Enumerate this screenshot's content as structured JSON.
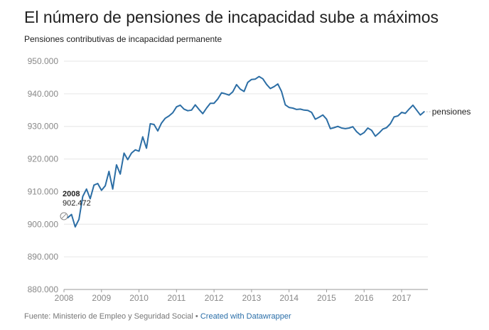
{
  "title": "El número de pensiones de incapacidad sube a máximos",
  "subtitle": "Pensiones contributivas de incapacidad permanente",
  "footer": {
    "source": "Fuente: Ministerio de Empleo y Seguridad Social",
    "separator": "•",
    "credit": "Created with Datawrapper"
  },
  "colors": {
    "line": "#2c6ea5",
    "grid": "#e6e6e6",
    "axis_text": "#888888"
  },
  "chart_data": {
    "type": "line",
    "title": "El número de pensiones de incapacidad sube a máximos",
    "subtitle": "Pensiones contributivas de incapacidad permanente",
    "xlabel": "",
    "ylabel": "",
    "xlim": [
      2008,
      2017.7
    ],
    "ylim": [
      880000,
      950000
    ],
    "grid": "horizontal",
    "x_ticks": [
      2008,
      2009,
      2010,
      2011,
      2012,
      2013,
      2014,
      2015,
      2016,
      2017
    ],
    "x_tick_labels": [
      "2008",
      "2009",
      "2010",
      "2011",
      "2012",
      "2013",
      "2014",
      "2015",
      "2016",
      "2017"
    ],
    "y_ticks": [
      880000,
      890000,
      900000,
      910000,
      920000,
      930000,
      940000,
      950000
    ],
    "y_tick_labels": [
      "880.000",
      "890.000",
      "900.000",
      "910.000",
      "920.000",
      "930.000",
      "940.000",
      "950.000"
    ],
    "annotation": {
      "year": "2008",
      "value": "902.472",
      "x": 2008.0,
      "y": 902472
    },
    "series": [
      {
        "name": "pensiones",
        "x": [
          2008.0,
          2008.1,
          2008.2,
          2008.3,
          2008.4,
          2008.5,
          2008.6,
          2008.7,
          2008.8,
          2008.9,
          2009.0,
          2009.1,
          2009.2,
          2009.3,
          2009.4,
          2009.5,
          2009.6,
          2009.7,
          2009.8,
          2009.9,
          2010.0,
          2010.1,
          2010.2,
          2010.3,
          2010.4,
          2010.5,
          2010.6,
          2010.7,
          2010.8,
          2010.9,
          2011.0,
          2011.1,
          2011.2,
          2011.3,
          2011.4,
          2011.5,
          2011.6,
          2011.7,
          2011.8,
          2011.9,
          2012.0,
          2012.1,
          2012.2,
          2012.3,
          2012.4,
          2012.5,
          2012.6,
          2012.7,
          2012.8,
          2012.9,
          2013.0,
          2013.1,
          2013.2,
          2013.3,
          2013.4,
          2013.5,
          2013.6,
          2013.7,
          2013.8,
          2013.9,
          2014.0,
          2014.1,
          2014.2,
          2014.3,
          2014.4,
          2014.5,
          2014.6,
          2014.7,
          2014.8,
          2014.9,
          2015.0,
          2015.1,
          2015.2,
          2015.3,
          2015.4,
          2015.5,
          2015.6,
          2015.7,
          2015.8,
          2015.9,
          2016.0,
          2016.1,
          2016.2,
          2016.3,
          2016.4,
          2016.5,
          2016.6,
          2016.7,
          2016.8,
          2016.9,
          2017.0,
          2017.1,
          2017.2,
          2017.3,
          2017.4,
          2017.5,
          2017.6
        ],
        "values": [
          902472,
          902000,
          903000,
          899200,
          901500,
          908500,
          910800,
          907800,
          912000,
          912500,
          910400,
          911800,
          916200,
          910800,
          918200,
          915400,
          921800,
          919800,
          921800,
          922800,
          922400,
          926800,
          923300,
          930800,
          930600,
          928600,
          931000,
          932500,
          933200,
          934200,
          936000,
          936500,
          935300,
          934800,
          935000,
          936600,
          935200,
          933900,
          935600,
          937100,
          937100,
          938400,
          940300,
          940000,
          939600,
          940600,
          942800,
          941400,
          940700,
          943500,
          944400,
          944500,
          945300,
          944600,
          942900,
          941600,
          942200,
          943000,
          940700,
          936600,
          935800,
          935600,
          935200,
          935300,
          935000,
          934900,
          934300,
          932200,
          932800,
          933500,
          932200,
          929300,
          929600,
          930000,
          929500,
          929300,
          929500,
          929900,
          928400,
          927400,
          928100,
          929500,
          928800,
          927000,
          928000,
          929200,
          929600,
          930800,
          932900,
          933200,
          934300,
          934000,
          935300,
          936500,
          935000,
          933500,
          934500
        ]
      }
    ]
  }
}
